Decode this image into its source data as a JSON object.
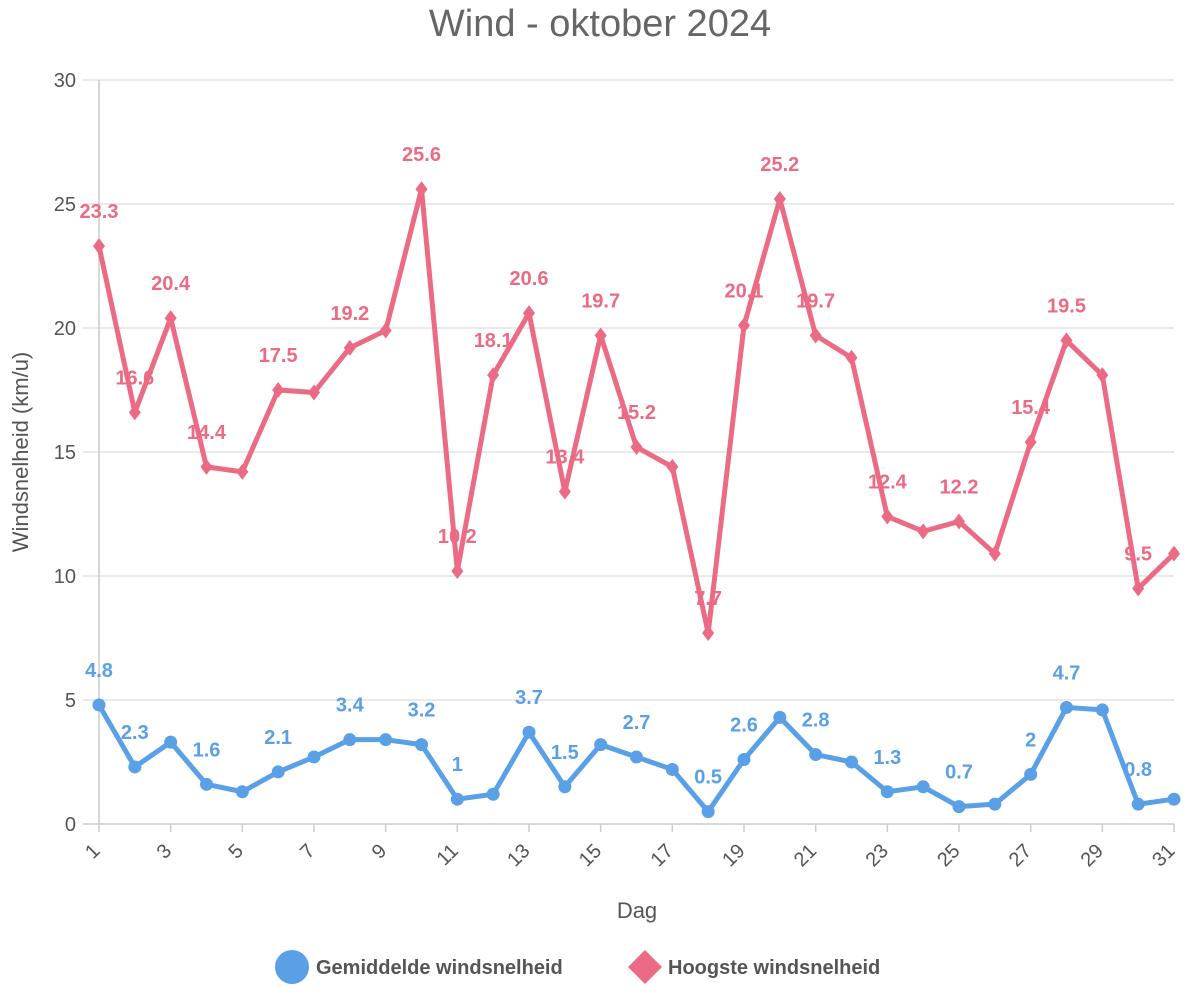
{
  "chart_data": {
    "type": "line",
    "title": "Wind - oktober 2024",
    "xlabel": "Dag",
    "ylabel": "Windsnelheid (km/u)",
    "ylim": [
      0,
      30
    ],
    "yticks": [
      0,
      5,
      10,
      15,
      20,
      25,
      30
    ],
    "x": [
      1,
      2,
      3,
      4,
      5,
      6,
      7,
      8,
      9,
      10,
      11,
      12,
      13,
      14,
      15,
      16,
      17,
      18,
      19,
      20,
      21,
      22,
      23,
      24,
      25,
      26,
      27,
      28,
      29,
      30,
      31
    ],
    "xtick_labels": [
      "1",
      "3",
      "5",
      "7",
      "9",
      "11",
      "13",
      "15",
      "17",
      "19",
      "21",
      "23",
      "25",
      "27",
      "29",
      "31"
    ],
    "grid": true,
    "legend_position": "bottom",
    "series": [
      {
        "name": "Gemiddelde windsnelheid",
        "color": "#5aa0e6",
        "marker": "circle",
        "values": [
          4.8,
          2.3,
          3.3,
          1.6,
          1.3,
          2.1,
          2.7,
          3.4,
          3.4,
          3.2,
          1.0,
          1.2,
          3.7,
          1.5,
          3.2,
          2.7,
          2.2,
          0.5,
          2.6,
          4.3,
          2.8,
          2.5,
          1.3,
          1.5,
          0.7,
          0.8,
          2.0,
          4.7,
          4.6,
          0.8,
          1.0
        ],
        "labels": [
          "4.8",
          "2.3",
          "",
          "1.6",
          "",
          "2.1",
          "",
          "3.4",
          "",
          "3.2",
          "1",
          "",
          "3.7",
          "1.5",
          "",
          "2.7",
          "",
          "0.5",
          "2.6",
          "",
          "2.8",
          "",
          "1.3",
          "",
          "0.7",
          "",
          "2",
          "4.7",
          "",
          "0.8",
          ""
        ]
      },
      {
        "name": "Hoogste windsnelheid",
        "color": "#ec6b84",
        "marker": "diamond",
        "values": [
          23.3,
          16.6,
          20.4,
          14.4,
          14.2,
          17.5,
          17.4,
          19.2,
          19.9,
          25.6,
          10.2,
          18.1,
          20.6,
          13.4,
          19.7,
          15.2,
          14.4,
          7.7,
          20.1,
          25.2,
          19.7,
          18.8,
          12.4,
          11.8,
          12.2,
          10.9,
          15.4,
          19.5,
          18.1,
          9.5,
          10.9
        ],
        "labels": [
          "23.3",
          "16.6",
          "20.4",
          "14.4",
          "",
          "17.5",
          "",
          "19.2",
          "",
          "25.6",
          "10.2",
          "18.1",
          "20.6",
          "13.4",
          "19.7",
          "15.2",
          "",
          "7.7",
          "20.1",
          "25.2",
          "19.7",
          "",
          "12.4",
          "",
          "12.2",
          "",
          "15.4",
          "19.5",
          "",
          "9.5",
          ""
        ]
      }
    ]
  }
}
